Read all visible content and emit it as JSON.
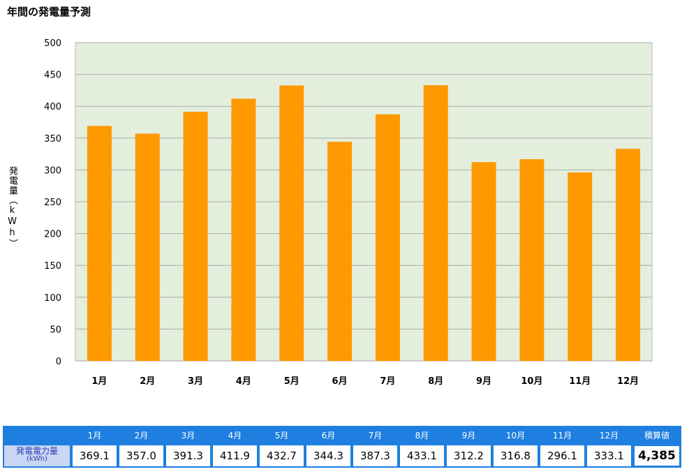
{
  "title": "年間の発電量予測",
  "colors": {
    "bar": "#ff9900",
    "plot_bg": "#e3efdc",
    "grid": "#a9a9a9",
    "table_header": "#1e7fe0"
  },
  "chart_data": {
    "type": "bar",
    "title": "年間の発電量予測",
    "xlabel": "",
    "ylabel": "発電量（kWh）",
    "categories": [
      "1月",
      "2月",
      "3月",
      "4月",
      "5月",
      "6月",
      "7月",
      "8月",
      "9月",
      "10月",
      "11月",
      "12月"
    ],
    "values": [
      369.1,
      357.0,
      391.3,
      411.9,
      432.7,
      344.3,
      387.3,
      433.1,
      312.2,
      316.8,
      296.1,
      333.1
    ],
    "ylim": [
      0,
      500
    ],
    "yticks": [
      0,
      50,
      100,
      150,
      200,
      250,
      300,
      350,
      400,
      450,
      500
    ],
    "grid": true,
    "legend": "none"
  },
  "table": {
    "header": [
      "1月",
      "2月",
      "3月",
      "4月",
      "5月",
      "6月",
      "7月",
      "8月",
      "9月",
      "10月",
      "11月",
      "12月",
      "積算値"
    ],
    "row_label": "発電電力量",
    "row_unit": "(kWh)",
    "values": [
      "369.1",
      "357.0",
      "391.3",
      "411.9",
      "432.7",
      "344.3",
      "387.3",
      "433.1",
      "312.2",
      "316.8",
      "296.1",
      "333.1"
    ],
    "total": "4,385"
  }
}
